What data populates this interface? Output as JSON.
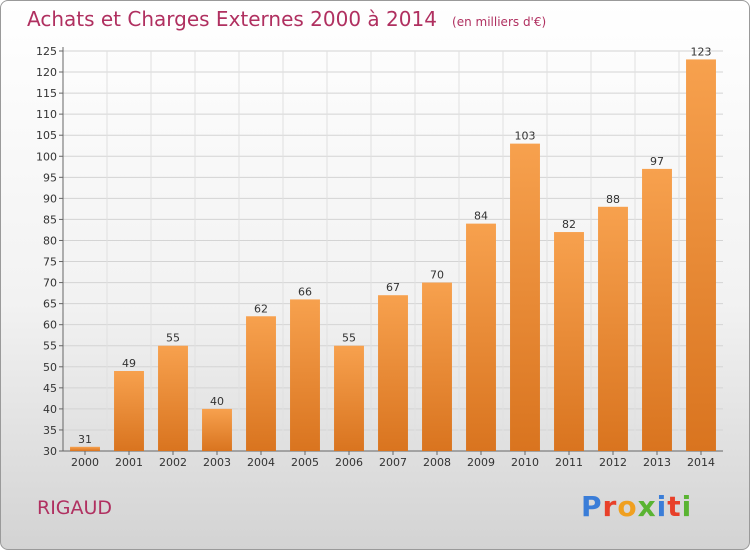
{
  "header": {
    "title": "Achats et Charges Externes 2000 à 2014",
    "subtitle": "(en milliers d'€)"
  },
  "footer": {
    "commune": "RIGAUD",
    "logo_text": "Proxiti",
    "logo_colors": [
      "#3a7dd8",
      "#e8402a",
      "#f0a020",
      "#5ab432",
      "#3a7dd8",
      "#e8402a",
      "#5ab432"
    ]
  },
  "colors": {
    "bar_light": "#f7a14e",
    "bar_dark": "#d9741f",
    "title": "#b03060"
  },
  "chart_data": {
    "type": "bar",
    "categories": [
      "2000",
      "2001",
      "2002",
      "2003",
      "2004",
      "2005",
      "2006",
      "2007",
      "2008",
      "2009",
      "2010",
      "2011",
      "2012",
      "2013",
      "2014"
    ],
    "values": [
      31,
      49,
      55,
      40,
      62,
      66,
      55,
      67,
      70,
      84,
      103,
      82,
      88,
      97,
      123
    ],
    "yticks": [
      30,
      35,
      40,
      45,
      50,
      55,
      60,
      65,
      70,
      75,
      80,
      85,
      90,
      95,
      100,
      105,
      110,
      115,
      120,
      125
    ],
    "ylim": [
      30,
      125
    ],
    "grid": true,
    "data_labels": true
  }
}
